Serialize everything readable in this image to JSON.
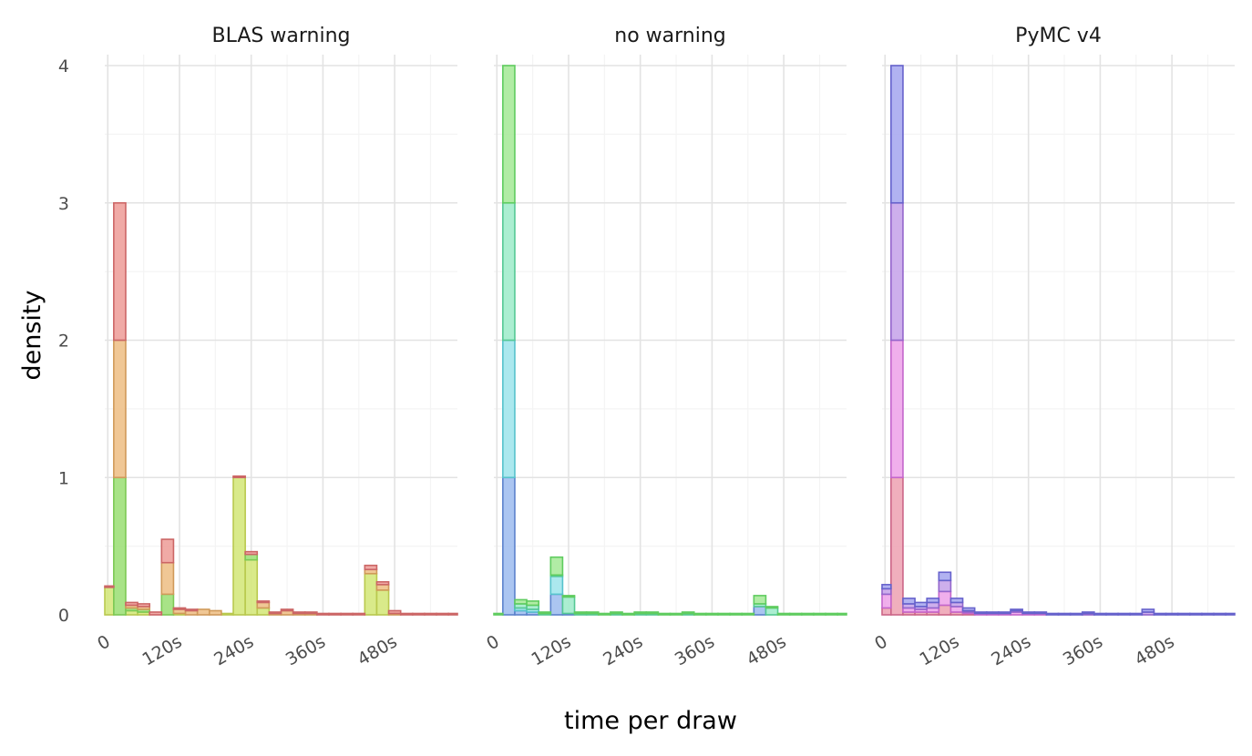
{
  "chart_data": {
    "type": "histogram-stacked",
    "xlabel": "time per draw",
    "ylabel": "density",
    "ylim": [
      0,
      4
    ],
    "xlim_seconds": [
      -5,
      585
    ],
    "x_ticks": [
      {
        "value": 0,
        "label": "0"
      },
      {
        "value": 120,
        "label": "120s"
      },
      {
        "value": 240,
        "label": "240s"
      },
      {
        "value": 360,
        "label": "360s"
      },
      {
        "value": 480,
        "label": "480s"
      }
    ],
    "y_ticks": [
      {
        "value": 0,
        "label": "0"
      },
      {
        "value": 1,
        "label": "1"
      },
      {
        "value": 2,
        "label": "2"
      },
      {
        "value": 3,
        "label": "3"
      },
      {
        "value": 4,
        "label": "4"
      }
    ],
    "grid": true,
    "legend": "none",
    "bin_width_seconds": 20,
    "bin_starts_seconds": [
      -10,
      10,
      30,
      50,
      70,
      90,
      110,
      130,
      150,
      170,
      190,
      210,
      230,
      250,
      270,
      290,
      310,
      330,
      350,
      370,
      390,
      410,
      430,
      450,
      470,
      490,
      510,
      530,
      550,
      570
    ],
    "panels": [
      {
        "title": "BLAS warning",
        "series": [
          {
            "fill": "#d5e87d",
            "stroke": "#b9c94e",
            "values": [
              0.2,
              0,
              0.03,
              0.02,
              0,
              0,
              0.01,
              0,
              0,
              0,
              0.01,
              1.0,
              0.4,
              0.05,
              0,
              0,
              0,
              0,
              0,
              0,
              0,
              0,
              0.3,
              0.18,
              0,
              0,
              0,
              0,
              0,
              0
            ]
          },
          {
            "fill": "#9fe07a",
            "stroke": "#7cc955",
            "values": [
              0,
              1.0,
              0.02,
              0.02,
              0,
              0.15,
              0,
              0,
              0,
              0,
              0,
              0,
              0.04,
              0,
              0,
              0,
              0,
              0,
              0,
              0,
              0,
              0,
              0,
              0,
              0,
              0,
              0,
              0,
              0,
              0
            ]
          },
          {
            "fill": "#eec18a",
            "stroke": "#d09a5a",
            "values": [
              0,
              1.0,
              0.02,
              0.02,
              0,
              0.23,
              0.03,
              0.03,
              0.04,
              0.03,
              0,
              0,
              0,
              0.04,
              0.01,
              0.03,
              0.01,
              0.01,
              0,
              0,
              0,
              0,
              0.03,
              0.04,
              0.01,
              0,
              0,
              0,
              0,
              0
            ]
          },
          {
            "fill": "#eea19c",
            "stroke": "#cc6666",
            "values": [
              0.01,
              1.0,
              0.02,
              0.02,
              0.02,
              0.17,
              0.01,
              0.01,
              0,
              0,
              0,
              0.01,
              0.02,
              0.01,
              0.01,
              0.01,
              0.01,
              0.01,
              0.01,
              0.01,
              0.01,
              0.01,
              0.03,
              0.02,
              0.02,
              0.01,
              0.01,
              0.01,
              0.01,
              0.01
            ]
          }
        ]
      },
      {
        "title": "no warning",
        "series": [
          {
            "fill": "#a2bff0",
            "stroke": "#5c82cc",
            "values": [
              0,
              1.0,
              0.03,
              0.02,
              0,
              0.15,
              0.01,
              0,
              0,
              0,
              0,
              0,
              0,
              0,
              0,
              0,
              0,
              0,
              0,
              0,
              0,
              0,
              0.06,
              0,
              0,
              0,
              0,
              0,
              0,
              0
            ]
          },
          {
            "fill": "#a2e6ec",
            "stroke": "#56c2cc",
            "values": [
              0,
              1.0,
              0.02,
              0.02,
              0,
              0.13,
              0,
              0,
              0,
              0,
              0,
              0,
              0,
              0,
              0,
              0,
              0,
              0,
              0,
              0,
              0,
              0,
              0,
              0,
              0,
              0,
              0,
              0,
              0,
              0
            ]
          },
          {
            "fill": "#a2eccc",
            "stroke": "#55c994",
            "values": [
              0,
              1.0,
              0.03,
              0.03,
              0.01,
              0.01,
              0.12,
              0.01,
              0.01,
              0,
              0.01,
              0,
              0.01,
              0.01,
              0,
              0,
              0.01,
              0,
              0,
              0,
              0,
              0,
              0.02,
              0.05,
              0,
              0,
              0,
              0,
              0,
              0
            ]
          },
          {
            "fill": "#a8ea9b",
            "stroke": "#5fcc5f",
            "values": [
              0.01,
              1.0,
              0.03,
              0.03,
              0.01,
              0.13,
              0.01,
              0.01,
              0.01,
              0.01,
              0.01,
              0.01,
              0.01,
              0.01,
              0.01,
              0.01,
              0.01,
              0.01,
              0.01,
              0.01,
              0.01,
              0.01,
              0.06,
              0.01,
              0.01,
              0.01,
              0.01,
              0.01,
              0.01,
              0.01
            ]
          }
        ]
      },
      {
        "title": "PyMC v4",
        "series": [
          {
            "fill": "#eea6b6",
            "stroke": "#cc6688",
            "values": [
              0.05,
              1.0,
              0.02,
              0.02,
              0.02,
              0.07,
              0.02,
              0.01,
              0,
              0,
              0,
              0,
              0,
              0,
              0,
              0,
              0,
              0,
              0,
              0,
              0,
              0,
              0,
              0,
              0,
              0,
              0,
              0,
              0,
              0
            ]
          },
          {
            "fill": "#eea6ea",
            "stroke": "#c466cc",
            "values": [
              0.1,
              1.0,
              0.03,
              0.02,
              0.03,
              0.1,
              0.04,
              0.01,
              0.01,
              0.01,
              0.01,
              0.02,
              0.01,
              0.01,
              0,
              0,
              0,
              0,
              0,
              0,
              0,
              0,
              0,
              0,
              0,
              0,
              0,
              0,
              0,
              0
            ]
          },
          {
            "fill": "#c8a6ea",
            "stroke": "#9466cc",
            "values": [
              0.04,
              1.0,
              0.03,
              0.02,
              0.04,
              0.08,
              0.03,
              0.01,
              0,
              0,
              0,
              0.01,
              0,
              0,
              0,
              0,
              0,
              0.01,
              0,
              0,
              0,
              0,
              0.02,
              0,
              0,
              0,
              0,
              0,
              0,
              0
            ]
          },
          {
            "fill": "#a9aaef",
            "stroke": "#6662cc",
            "values": [
              0.03,
              1.0,
              0.04,
              0.03,
              0.03,
              0.06,
              0.03,
              0.02,
              0.01,
              0.01,
              0.01,
              0.01,
              0.01,
              0.01,
              0.01,
              0.01,
              0.01,
              0.01,
              0.01,
              0.01,
              0.01,
              0.01,
              0.02,
              0.01,
              0.01,
              0.01,
              0.01,
              0.01,
              0.01,
              0.01
            ]
          }
        ]
      }
    ]
  }
}
